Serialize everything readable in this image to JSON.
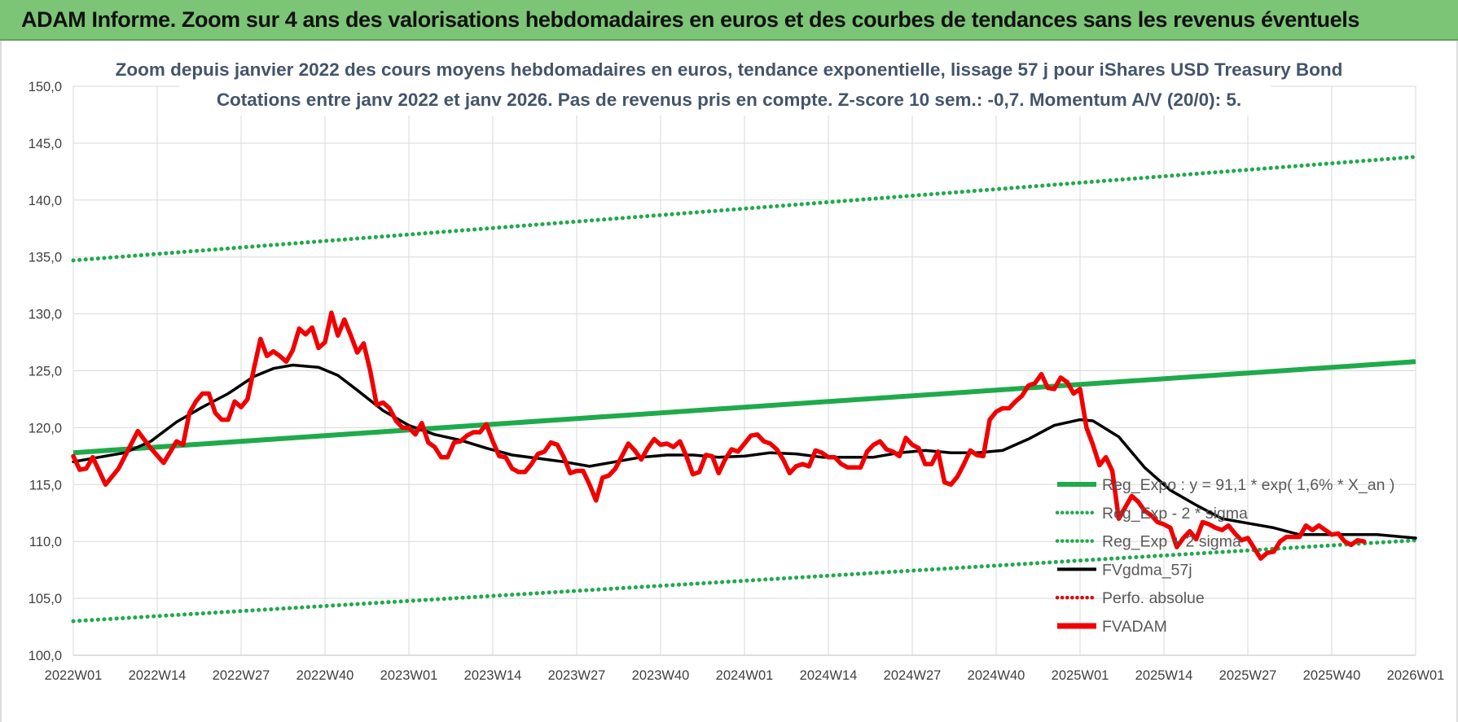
{
  "banner": {
    "title": "ADAM Informe. Zoom sur 4 ans des valorisations hebdomadaires en euros et des courbes de tendances sans les revenus éventuels"
  },
  "colors": {
    "banner": "#7cc576",
    "trend": "#1faa4b",
    "band": "#1faa4b",
    "smooth": "#000000",
    "perfo": "#e00000",
    "price": "#f00000",
    "title": "#44546a",
    "grid": "#d9d9d9"
  },
  "chart_data": {
    "type": "line",
    "title": "Zoom depuis janvier 2022 des cours moyens hebdomadaires en euros, tendance exponentielle, lissage 57 j pour iShares USD Treasury Bond",
    "subtitle": "Cotations entre janv 2022 et janv 2026. Pas de revenus pris en compte. Z-score 10 sem.: -0,7. Momentum A/V (20/0): 5.",
    "xlabel": "",
    "ylabel": "",
    "ylim": [
      100,
      150
    ],
    "yticks": [
      "100,0",
      "105,0",
      "110,0",
      "115,0",
      "120,0",
      "125,0",
      "130,0",
      "135,0",
      "140,0",
      "145,0",
      "150,0"
    ],
    "x_range_weeks": [
      0,
      208
    ],
    "xticks": [
      {
        "label": "2022W01",
        "week": 0
      },
      {
        "label": "2022W14",
        "week": 13
      },
      {
        "label": "2022W27",
        "week": 26
      },
      {
        "label": "2022W40",
        "week": 39
      },
      {
        "label": "2023W01",
        "week": 52
      },
      {
        "label": "2023W14",
        "week": 65
      },
      {
        "label": "2023W27",
        "week": 78
      },
      {
        "label": "2023W40",
        "week": 91
      },
      {
        "label": "2024W01",
        "week": 104
      },
      {
        "label": "2024W14",
        "week": 117
      },
      {
        "label": "2024W27",
        "week": 130
      },
      {
        "label": "2024W40",
        "week": 143
      },
      {
        "label": "2025W01",
        "week": 156
      },
      {
        "label": "2025W14",
        "week": 169
      },
      {
        "label": "2025W27",
        "week": 182
      },
      {
        "label": "2025W40",
        "week": 195
      },
      {
        "label": "2026W01",
        "week": 208
      }
    ],
    "grid": true,
    "legend_position": "bottom-right inside plot",
    "legend": [
      {
        "key": "trend",
        "label": "Reg_Expo : y = 91,1 * exp( 1,6% *  X_an )",
        "style": "solid-thick"
      },
      {
        "key": "lower",
        "label": "Reg_Exp - 2 * sigma",
        "style": "dotted"
      },
      {
        "key": "upper",
        "label": "Reg_Exp + 2 sigma",
        "style": "dotted"
      },
      {
        "key": "smooth",
        "label": "FVgdma_57j",
        "style": "solid"
      },
      {
        "key": "perfo",
        "label": "Perfo. absolue",
        "style": "dotted"
      },
      {
        "key": "price",
        "label": "FVADAM",
        "style": "solid-thick"
      }
    ],
    "series": [
      {
        "key": "upper",
        "name": "Reg_Exp + 2 sigma",
        "color": "#1faa4b",
        "points": [
          [
            0,
            134.7
          ],
          [
            208,
            143.8
          ]
        ]
      },
      {
        "key": "trend",
        "name": "Reg_Expo : y = 91,1 * exp( 1,6% *  X_an )",
        "color": "#1faa4b",
        "points": [
          [
            0,
            117.8
          ],
          [
            208,
            125.8
          ]
        ]
      },
      {
        "key": "lower",
        "name": "Reg_Exp - 2 * sigma",
        "color": "#1faa4b",
        "points": [
          [
            0,
            103.0
          ],
          [
            208,
            110.1
          ]
        ]
      },
      {
        "key": "smooth",
        "name": "FVgdma_57j",
        "color": "#000000",
        "points": [
          [
            0,
            117.0
          ],
          [
            4,
            117.4
          ],
          [
            8,
            117.8
          ],
          [
            12,
            118.8
          ],
          [
            16,
            120.5
          ],
          [
            20,
            121.8
          ],
          [
            24,
            123.0
          ],
          [
            28,
            124.5
          ],
          [
            31,
            125.2
          ],
          [
            34,
            125.5
          ],
          [
            38,
            125.3
          ],
          [
            41,
            124.6
          ],
          [
            44,
            123.3
          ],
          [
            48,
            121.5
          ],
          [
            52,
            120.2
          ],
          [
            56,
            119.4
          ],
          [
            60,
            118.9
          ],
          [
            64,
            118.2
          ],
          [
            68,
            117.6
          ],
          [
            72,
            117.3
          ],
          [
            76,
            117.0
          ],
          [
            80,
            116.6
          ],
          [
            84,
            117.0
          ],
          [
            88,
            117.4
          ],
          [
            92,
            117.6
          ],
          [
            96,
            117.6
          ],
          [
            100,
            117.4
          ],
          [
            104,
            117.5
          ],
          [
            108,
            117.8
          ],
          [
            112,
            117.7
          ],
          [
            116,
            117.4
          ],
          [
            120,
            117.4
          ],
          [
            124,
            117.4
          ],
          [
            128,
            117.8
          ],
          [
            132,
            118.0
          ],
          [
            136,
            117.8
          ],
          [
            140,
            117.8
          ],
          [
            144,
            118.0
          ],
          [
            148,
            119.0
          ],
          [
            152,
            120.2
          ],
          [
            156,
            120.7
          ],
          [
            158,
            120.6
          ],
          [
            162,
            119.2
          ],
          [
            166,
            116.5
          ],
          [
            170,
            114.5
          ],
          [
            174,
            113.2
          ],
          [
            178,
            112.0
          ],
          [
            182,
            111.6
          ],
          [
            186,
            111.2
          ],
          [
            190,
            110.6
          ],
          [
            194,
            110.6
          ],
          [
            198,
            110.6
          ],
          [
            202,
            110.6
          ],
          [
            206,
            110.4
          ],
          [
            208,
            110.3
          ]
        ]
      },
      {
        "key": "price",
        "name": "FVADAM",
        "color": "#f00000",
        "points": [
          [
            0,
            117.5
          ],
          [
            1,
            116.3
          ],
          [
            2,
            116.4
          ],
          [
            3,
            117.4
          ],
          [
            5,
            115.0
          ],
          [
            7,
            116.4
          ],
          [
            10,
            119.7
          ],
          [
            12,
            118.2
          ],
          [
            14,
            116.9
          ],
          [
            16,
            118.8
          ],
          [
            17,
            118.5
          ],
          [
            18,
            121.3
          ],
          [
            19,
            122.3
          ],
          [
            20,
            123.0
          ],
          [
            21,
            123.0
          ],
          [
            22,
            121.3
          ],
          [
            23,
            120.7
          ],
          [
            24,
            120.7
          ],
          [
            25,
            122.3
          ],
          [
            26,
            121.8
          ],
          [
            27,
            122.5
          ],
          [
            28,
            125.2
          ],
          [
            29,
            127.8
          ],
          [
            30,
            126.3
          ],
          [
            31,
            126.7
          ],
          [
            32,
            126.3
          ],
          [
            33,
            125.8
          ],
          [
            34,
            126.8
          ],
          [
            35,
            128.7
          ],
          [
            36,
            128.2
          ],
          [
            37,
            128.8
          ],
          [
            38,
            127.0
          ],
          [
            39,
            127.5
          ],
          [
            40,
            130.1
          ],
          [
            41,
            128.1
          ],
          [
            42,
            129.5
          ],
          [
            43,
            128.1
          ],
          [
            44,
            126.6
          ],
          [
            45,
            127.4
          ],
          [
            46,
            125.0
          ],
          [
            47,
            122.0
          ],
          [
            48,
            122.2
          ],
          [
            49,
            121.7
          ],
          [
            50,
            120.6
          ],
          [
            51,
            120.0
          ],
          [
            52,
            120.0
          ],
          [
            53,
            119.4
          ],
          [
            54,
            120.4
          ],
          [
            55,
            118.7
          ],
          [
            56,
            118.3
          ],
          [
            57,
            117.4
          ],
          [
            58,
            117.4
          ],
          [
            59,
            118.7
          ],
          [
            60,
            118.8
          ],
          [
            61,
            119.3
          ],
          [
            62,
            119.6
          ],
          [
            63,
            119.6
          ],
          [
            64,
            120.3
          ],
          [
            65,
            118.8
          ],
          [
            66,
            117.5
          ],
          [
            67,
            117.4
          ],
          [
            68,
            116.4
          ],
          [
            69,
            116.1
          ],
          [
            70,
            116.1
          ],
          [
            71,
            116.8
          ],
          [
            72,
            117.7
          ],
          [
            73,
            117.9
          ],
          [
            74,
            118.7
          ],
          [
            75,
            118.5
          ],
          [
            76,
            117.4
          ],
          [
            77,
            116.0
          ],
          [
            78,
            116.2
          ],
          [
            79,
            116.2
          ],
          [
            80,
            115.0
          ],
          [
            81,
            113.6
          ],
          [
            82,
            115.6
          ],
          [
            83,
            115.8
          ],
          [
            84,
            116.4
          ],
          [
            85,
            117.5
          ],
          [
            86,
            118.6
          ],
          [
            87,
            118.0
          ],
          [
            88,
            117.2
          ],
          [
            89,
            118.2
          ],
          [
            90,
            119.0
          ],
          [
            91,
            118.5
          ],
          [
            92,
            118.6
          ],
          [
            93,
            118.3
          ],
          [
            94,
            118.8
          ],
          [
            95,
            117.5
          ],
          [
            96,
            115.9
          ],
          [
            97,
            116.1
          ],
          [
            98,
            117.6
          ],
          [
            99,
            117.5
          ],
          [
            100,
            116.0
          ],
          [
            101,
            117.2
          ],
          [
            102,
            118.1
          ],
          [
            103,
            117.9
          ],
          [
            104,
            118.6
          ],
          [
            105,
            119.3
          ],
          [
            106,
            119.4
          ],
          [
            107,
            118.8
          ],
          [
            108,
            118.6
          ],
          [
            109,
            118.1
          ],
          [
            110,
            117.2
          ],
          [
            111,
            116.0
          ],
          [
            112,
            116.6
          ],
          [
            113,
            116.8
          ],
          [
            114,
            116.6
          ],
          [
            115,
            118.0
          ],
          [
            116,
            117.8
          ],
          [
            117,
            117.4
          ],
          [
            118,
            117.4
          ],
          [
            119,
            116.8
          ],
          [
            120,
            116.5
          ],
          [
            121,
            116.5
          ],
          [
            122,
            116.5
          ],
          [
            123,
            117.9
          ],
          [
            124,
            118.5
          ],
          [
            125,
            118.8
          ],
          [
            126,
            118.1
          ],
          [
            127,
            117.9
          ],
          [
            128,
            117.5
          ],
          [
            129,
            119.1
          ],
          [
            130,
            118.5
          ],
          [
            131,
            118.2
          ],
          [
            132,
            116.8
          ],
          [
            133,
            116.8
          ],
          [
            134,
            117.9
          ],
          [
            135,
            115.2
          ],
          [
            136,
            115.0
          ],
          [
            137,
            115.7
          ],
          [
            138,
            116.8
          ],
          [
            139,
            118.0
          ],
          [
            140,
            117.6
          ],
          [
            141,
            117.5
          ],
          [
            142,
            120.7
          ],
          [
            143,
            121.4
          ],
          [
            144,
            121.7
          ],
          [
            145,
            121.7
          ],
          [
            146,
            122.3
          ],
          [
            147,
            122.8
          ],
          [
            148,
            123.7
          ],
          [
            149,
            123.9
          ],
          [
            150,
            124.7
          ],
          [
            151,
            123.5
          ],
          [
            152,
            123.4
          ],
          [
            153,
            124.4
          ],
          [
            154,
            124.0
          ],
          [
            155,
            123.0
          ],
          [
            156,
            123.4
          ],
          [
            157,
            120.0
          ],
          [
            158,
            118.5
          ],
          [
            159,
            116.7
          ],
          [
            160,
            117.4
          ],
          [
            161,
            116.2
          ],
          [
            162,
            112.0
          ],
          [
            163,
            113.0
          ],
          [
            164,
            114.0
          ],
          [
            165,
            113.5
          ],
          [
            166,
            112.7
          ],
          [
            167,
            112.3
          ],
          [
            168,
            111.7
          ],
          [
            169,
            111.5
          ],
          [
            170,
            111.2
          ],
          [
            171,
            109.5
          ],
          [
            172,
            110.3
          ],
          [
            173,
            110.9
          ],
          [
            174,
            110.2
          ],
          [
            175,
            111.7
          ],
          [
            176,
            111.5
          ],
          [
            177,
            111.2
          ],
          [
            178,
            111.0
          ],
          [
            179,
            111.4
          ],
          [
            180,
            110.7
          ],
          [
            181,
            110.1
          ],
          [
            182,
            110.3
          ],
          [
            183,
            109.4
          ],
          [
            184,
            108.5
          ],
          [
            185,
            109.0
          ],
          [
            186,
            109.1
          ],
          [
            187,
            110.0
          ],
          [
            188,
            110.4
          ],
          [
            189,
            110.4
          ],
          [
            190,
            110.4
          ],
          [
            191,
            111.4
          ],
          [
            192,
            111.0
          ],
          [
            193,
            111.4
          ],
          [
            194,
            111.0
          ],
          [
            195,
            110.6
          ],
          [
            196,
            110.7
          ],
          [
            197,
            110.0
          ],
          [
            198,
            109.7
          ],
          [
            199,
            110.1
          ],
          [
            200,
            110.0
          ]
        ]
      }
    ]
  }
}
